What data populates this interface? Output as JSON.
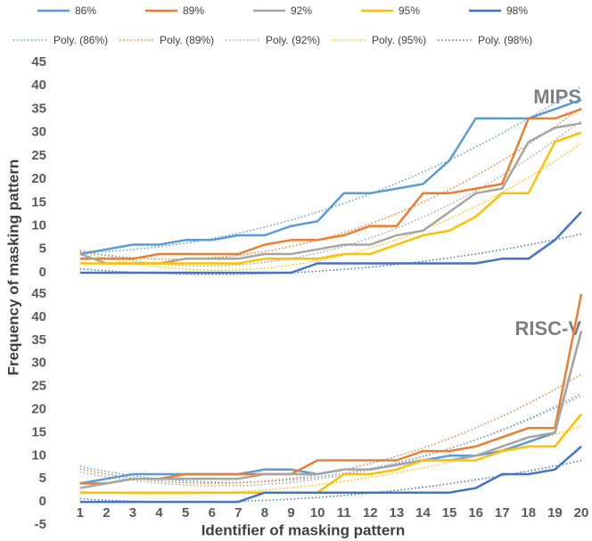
{
  "chart_data": {
    "type": "line",
    "xlabel": "Identifier of masking pattern",
    "ylabel": "Frequency of masking pattern",
    "x": [
      1,
      2,
      3,
      4,
      5,
      6,
      7,
      8,
      9,
      10,
      11,
      12,
      13,
      14,
      15,
      16,
      17,
      18,
      19,
      20
    ],
    "xlim": [
      0.5,
      20
    ],
    "xticks": [
      1,
      2,
      3,
      4,
      5,
      6,
      7,
      8,
      9,
      10,
      11,
      12,
      13,
      14,
      15,
      16,
      17,
      18,
      19,
      20
    ],
    "series": [
      {
        "name": "86%",
        "color": "#5b9bd5"
      },
      {
        "name": "89%",
        "color": "#ed7d31"
      },
      {
        "name": "92%",
        "color": "#a5a5a5"
      },
      {
        "name": "95%",
        "color": "#ffc000"
      },
      {
        "name": "98%",
        "color": "#4472c4"
      }
    ],
    "trendlines": [
      {
        "name": "Poly. (86%)",
        "order": 2
      },
      {
        "name": "Poly. (89%)",
        "order": 2
      },
      {
        "name": "Poly. (92%)",
        "order": 2
      },
      {
        "name": "Poly. (95%)",
        "order": 2
      },
      {
        "name": "Poly. (98%)",
        "order": 2
      }
    ],
    "panels": [
      {
        "title": "MIPS",
        "ylim": [
          0,
          45
        ],
        "yticks": [
          0,
          5,
          10,
          15,
          20,
          25,
          30,
          35,
          40,
          45
        ],
        "values": [
          [
            4,
            5,
            6,
            6,
            7,
            7,
            8,
            8,
            10,
            11,
            17,
            17,
            18,
            19,
            24,
            33,
            33,
            33,
            35,
            37
          ],
          [
            3,
            3,
            3,
            4,
            4,
            4,
            4,
            6,
            7,
            7,
            8,
            10,
            10,
            17,
            17,
            18,
            19,
            33,
            33,
            35
          ],
          [
            4,
            2,
            2,
            2,
            3,
            3,
            3,
            4,
            4,
            5,
            6,
            6,
            8,
            9,
            13,
            17,
            18,
            28,
            31,
            32
          ],
          [
            2,
            2,
            2,
            2,
            2,
            2,
            2,
            3,
            3,
            3,
            4,
            4,
            6,
            8,
            9,
            12,
            17,
            17,
            28,
            30
          ],
          [
            0,
            0,
            0,
            0,
            0,
            0,
            0,
            0,
            0,
            2,
            2,
            2,
            2,
            2,
            2,
            2,
            3,
            3,
            7,
            13
          ]
        ]
      },
      {
        "title": "RISC-V",
        "ylim": [
          -5,
          45
        ],
        "yticks": [
          -5,
          0,
          5,
          10,
          15,
          20,
          25,
          30,
          35,
          40,
          45
        ],
        "values": [
          [
            4,
            5,
            6,
            6,
            6,
            6,
            6,
            7,
            7,
            6,
            7,
            7,
            8,
            9,
            10,
            10,
            11,
            13,
            15,
            37
          ],
          [
            4,
            4,
            5,
            5,
            6,
            6,
            6,
            6,
            6,
            9,
            9,
            9,
            9,
            11,
            11,
            12,
            14,
            16,
            16,
            45
          ],
          [
            3,
            4,
            5,
            5,
            5,
            5,
            5,
            6,
            6,
            6,
            7,
            7,
            8,
            9,
            9,
            10,
            12,
            14,
            15,
            37
          ],
          [
            2,
            2,
            2,
            2,
            2,
            2,
            2,
            2,
            2,
            2,
            6,
            6,
            7,
            9,
            9,
            9,
            11,
            12,
            12,
            19
          ],
          [
            0,
            0,
            0,
            0,
            0,
            0,
            0,
            2,
            2,
            2,
            2,
            2,
            2,
            2,
            2,
            3,
            6,
            6,
            7,
            12
          ]
        ]
      }
    ]
  }
}
